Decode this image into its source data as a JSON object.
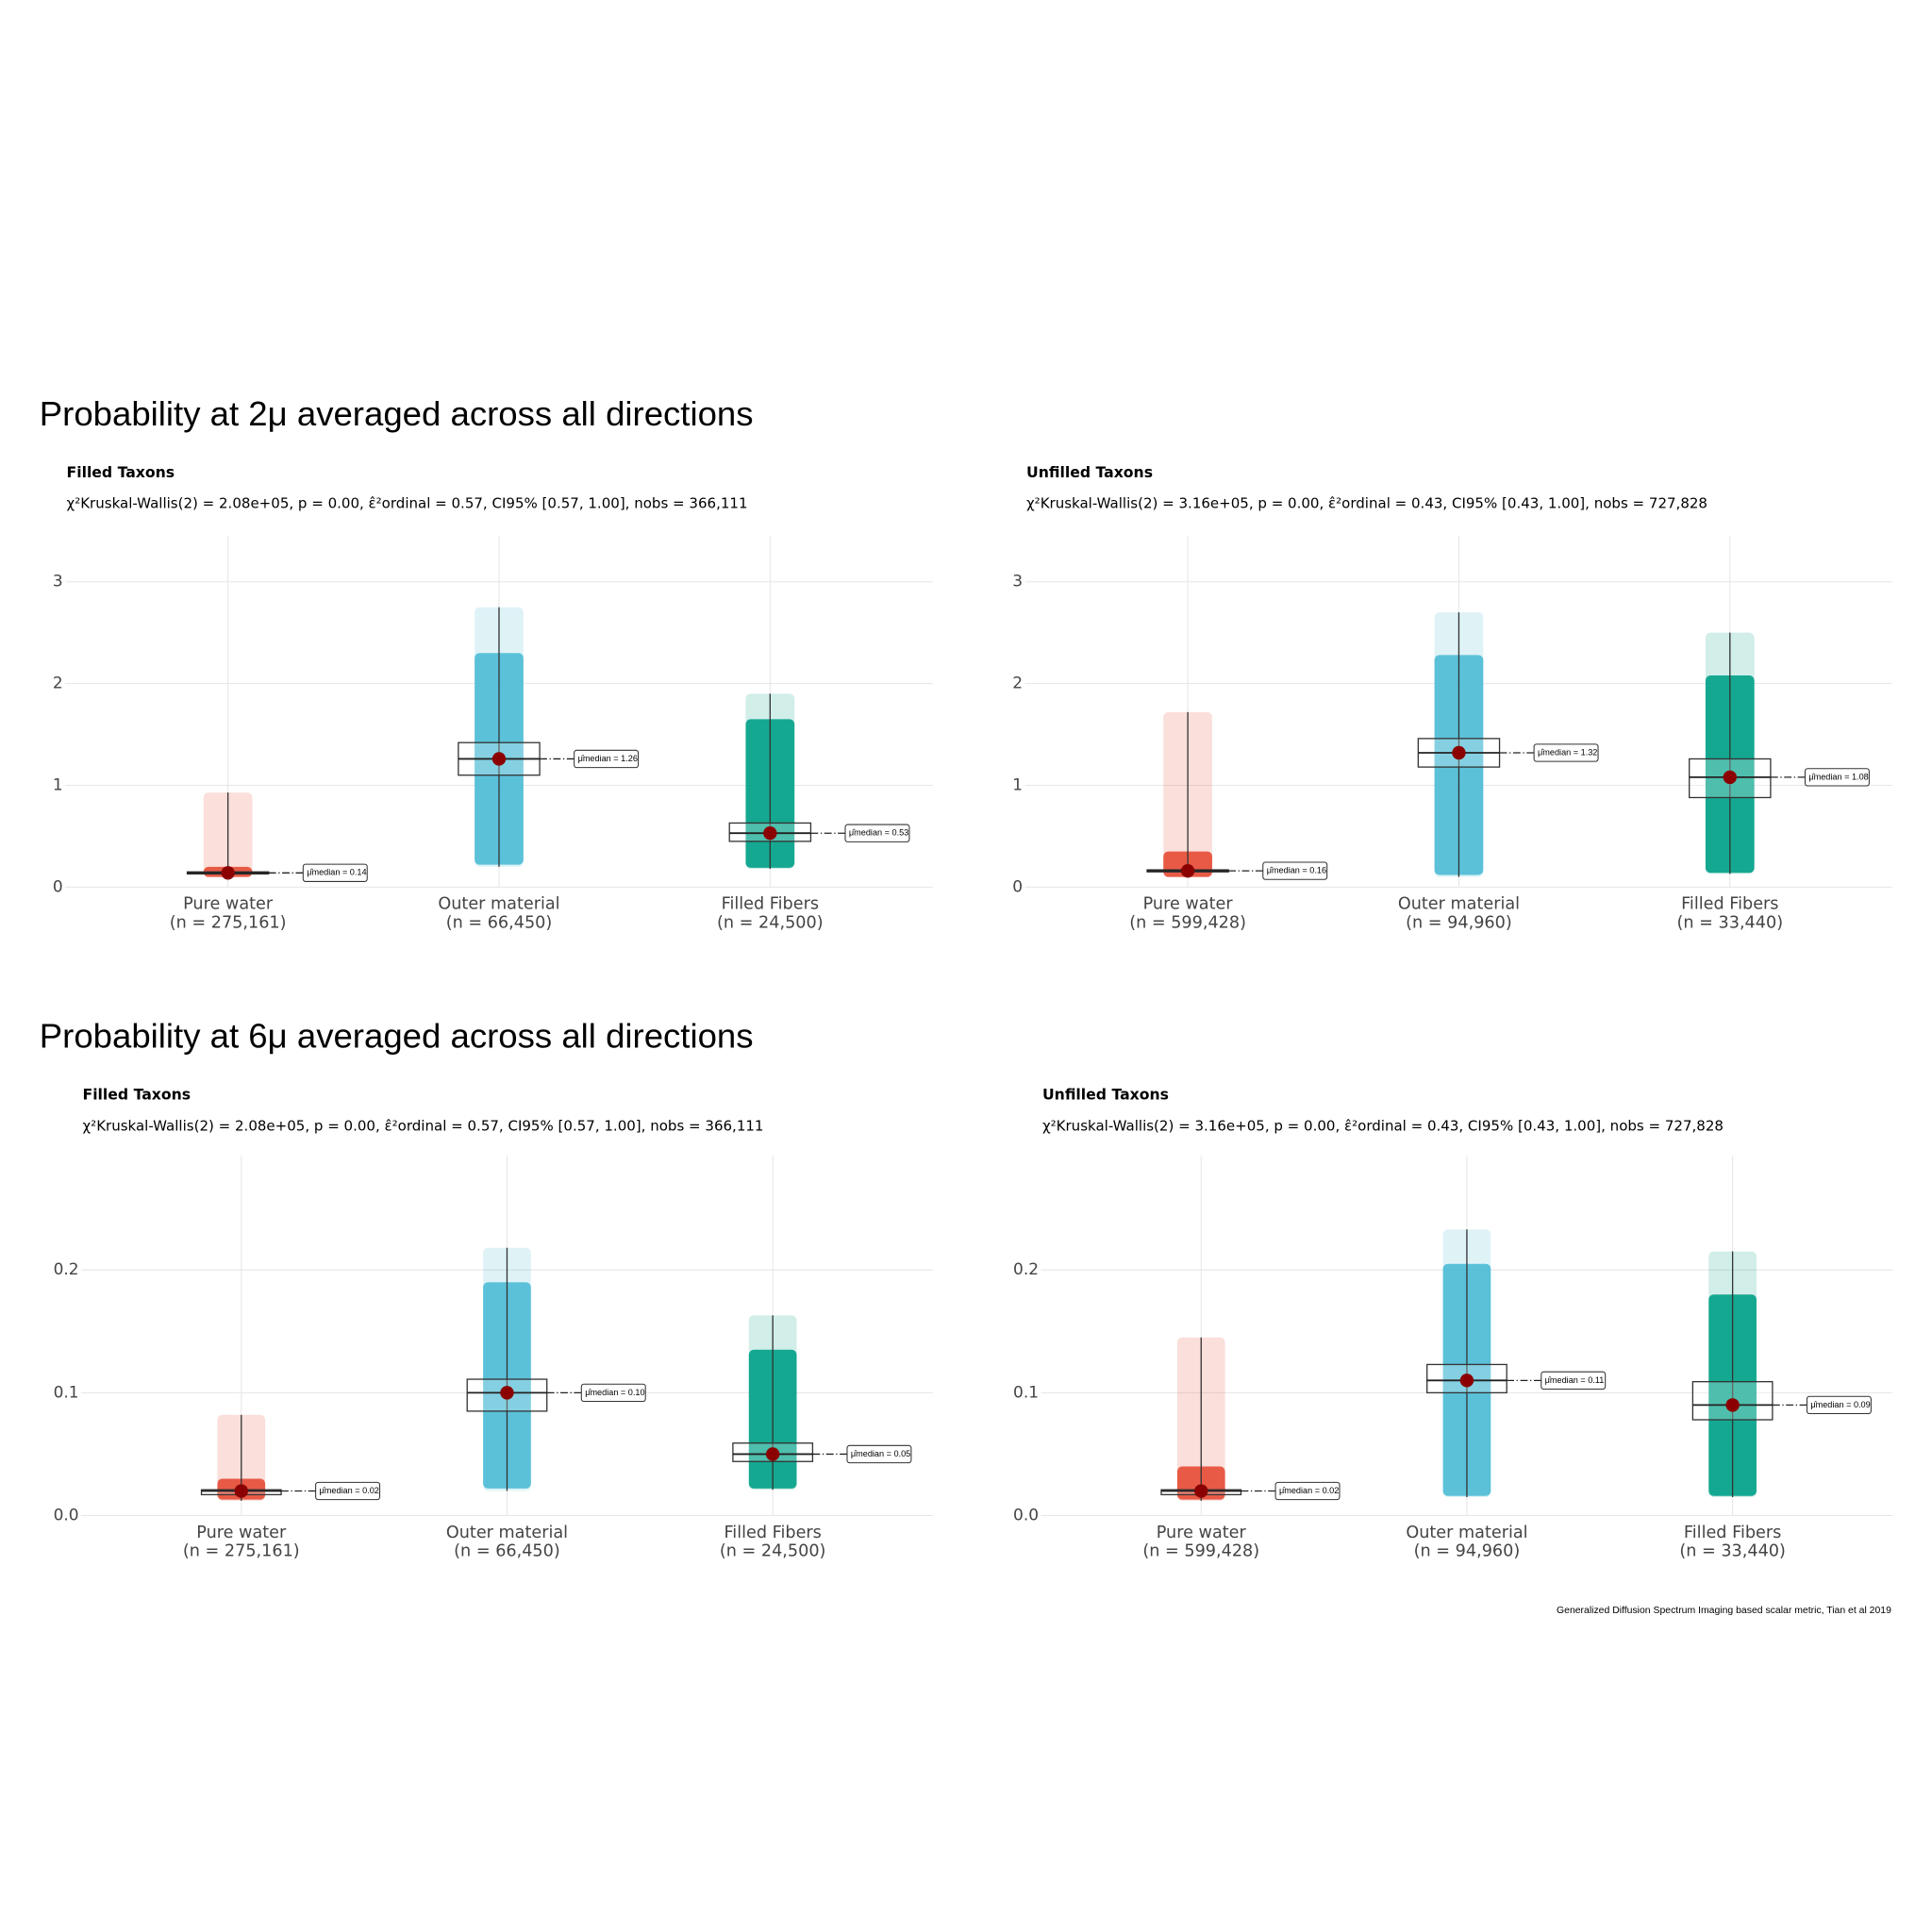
{
  "headings": [
    "Probability at 2μ averaged across all directions",
    "Probability at 6μ averaged across all directions"
  ],
  "caption": "Generalized Diffusion Spectrum Imaging based scalar metric, Tian et al 2019",
  "chart_data": [
    {
      "type": "box",
      "title": "Filled Taxons",
      "subtitle": "χ²Kruskal-Wallis(2) = 2.08e+05, p = 0.00, ε̂²ordinal = 0.57, CI95% [0.57, 1.00], nobs = 366,111",
      "categories": [
        "Pure water",
        "Outer material",
        "Filled Fibers"
      ],
      "n_labels": [
        "(n = 275,161)",
        "(n = 66,450)",
        "(n = 24,500)"
      ],
      "colors": [
        "#E64B35",
        "#4DBBD5",
        "#00A087"
      ],
      "values": [
        0.14,
        1.26,
        0.53
      ],
      "value_labels": [
        "μ̂median = 0.14",
        "μ̂median = 1.26",
        "μ̂median = 0.53"
      ],
      "q1": [
        0.13,
        1.1,
        0.45
      ],
      "q3": [
        0.15,
        1.42,
        0.63
      ],
      "whisker_low": [
        0.1,
        0.2,
        0.18
      ],
      "whisker_high": [
        0.93,
        2.75,
        1.9
      ],
      "dense_low": [
        0.1,
        0.22,
        0.19
      ],
      "dense_high": [
        0.2,
        2.3,
        1.65
      ],
      "ylim": [
        0,
        3.45
      ],
      "yticks": [
        0,
        1,
        2,
        3
      ],
      "grid": true
    },
    {
      "type": "box",
      "title": "Unfilled Taxons",
      "subtitle": "χ²Kruskal-Wallis(2) = 3.16e+05, p = 0.00, ε̂²ordinal = 0.43, CI95% [0.43, 1.00], nobs = 727,828",
      "categories": [
        "Pure water",
        "Outer material",
        "Filled Fibers"
      ],
      "n_labels": [
        "(n = 599,428)",
        "(n = 94,960)",
        "(n = 33,440)"
      ],
      "colors": [
        "#E64B35",
        "#4DBBD5",
        "#00A087"
      ],
      "values": [
        0.16,
        1.32,
        1.08
      ],
      "value_labels": [
        "μ̂median = 0.16",
        "μ̂median = 1.32",
        "μ̂median = 1.08"
      ],
      "q1": [
        0.15,
        1.18,
        0.88
      ],
      "q3": [
        0.17,
        1.46,
        1.26
      ],
      "whisker_low": [
        0.1,
        0.1,
        0.13
      ],
      "whisker_high": [
        1.72,
        2.7,
        2.5
      ],
      "dense_low": [
        0.1,
        0.12,
        0.14
      ],
      "dense_high": [
        0.35,
        2.28,
        2.08
      ],
      "ylim": [
        0,
        3.45
      ],
      "yticks": [
        0,
        1,
        2,
        3
      ],
      "grid": true
    },
    {
      "type": "box",
      "title": "Filled Taxons",
      "subtitle": "χ²Kruskal-Wallis(2) = 2.08e+05, p = 0.00, ε̂²ordinal = 0.57, CI95% [0.57, 1.00], nobs = 366,111",
      "categories": [
        "Pure water",
        "Outer material",
        "Filled Fibers"
      ],
      "n_labels": [
        "(n = 275,161)",
        "(n = 66,450)",
        "(n = 24,500)"
      ],
      "colors": [
        "#E64B35",
        "#4DBBD5",
        "#00A087"
      ],
      "values": [
        0.02,
        0.1,
        0.05
      ],
      "value_labels": [
        "μ̂median = 0.02",
        "μ̂median = 0.10",
        "μ̂median = 0.05"
      ],
      "q1": [
        0.017,
        0.085,
        0.044
      ],
      "q3": [
        0.021,
        0.111,
        0.059
      ],
      "whisker_low": [
        0.012,
        0.02,
        0.021
      ],
      "whisker_high": [
        0.082,
        0.218,
        0.163
      ],
      "dense_low": [
        0.013,
        0.022,
        0.022
      ],
      "dense_high": [
        0.03,
        0.19,
        0.135
      ],
      "ylim": [
        0,
        0.293
      ],
      "yticks": [
        {
          "value": 0,
          "label": "0.0"
        },
        0.1,
        0.2
      ],
      "grid": true
    },
    {
      "type": "box",
      "title": "Unfilled Taxons",
      "subtitle": "χ²Kruskal-Wallis(2) = 3.16e+05, p = 0.00, ε̂²ordinal = 0.43, CI95% [0.43, 1.00], nobs = 727,828",
      "categories": [
        "Pure water",
        "Outer material",
        "Filled Fibers"
      ],
      "n_labels": [
        "(n = 599,428)",
        "(n = 94,960)",
        "(n = 33,440)"
      ],
      "colors": [
        "#E64B35",
        "#4DBBD5",
        "#00A087"
      ],
      "values": [
        0.02,
        0.11,
        0.09
      ],
      "value_labels": [
        "μ̂median = 0.02",
        "μ̂median = 0.11",
        "μ̂median = 0.09"
      ],
      "q1": [
        0.017,
        0.1,
        0.078
      ],
      "q3": [
        0.021,
        0.123,
        0.109
      ],
      "whisker_low": [
        0.012,
        0.015,
        0.015
      ],
      "whisker_high": [
        0.145,
        0.233,
        0.215
      ],
      "dense_low": [
        0.013,
        0.016,
        0.016
      ],
      "dense_high": [
        0.04,
        0.205,
        0.18
      ],
      "ylim": [
        0,
        0.293
      ],
      "yticks": [
        {
          "value": 0,
          "label": "0.0"
        },
        0.1,
        0.2
      ],
      "grid": true
    }
  ]
}
